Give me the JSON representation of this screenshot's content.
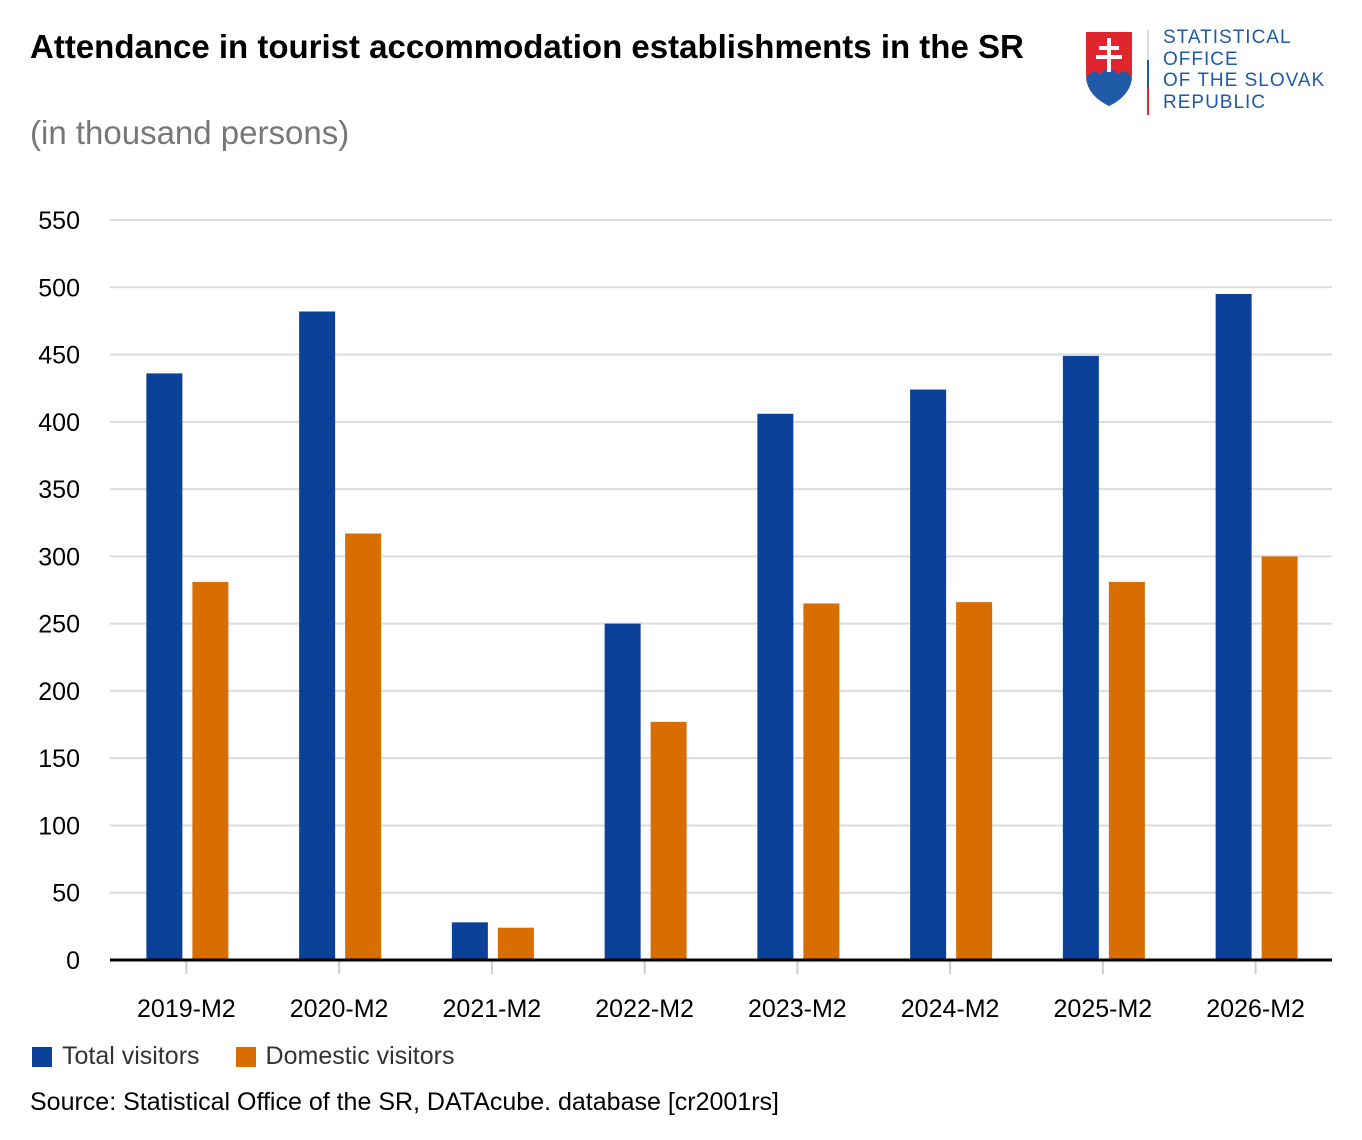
{
  "title": "Attendance in tourist accommodation establishments in the SR",
  "subtitle": "(in thousand persons)",
  "logo": {
    "lines": [
      "STATISTICAL",
      "OFFICE",
      "OF THE SLOVAK",
      "REPUBLIC"
    ]
  },
  "source": "Source: Statistical Office of the SR, DATAcube. database [cr2001rs]",
  "colors": {
    "total": "#0c4199",
    "domestic": "#d96e00"
  },
  "chart_data": {
    "type": "bar",
    "categories": [
      "2019-M2",
      "2020-M2",
      "2021-M2",
      "2022-M2",
      "2023-M2",
      "2024-M2",
      "2025-M2",
      "2026-M2"
    ],
    "series": [
      {
        "name": "Total visitors",
        "values": [
          436,
          482,
          28,
          250,
          406,
          424,
          449,
          495
        ]
      },
      {
        "name": "Domestic visitors",
        "values": [
          281,
          317,
          24,
          177,
          265,
          266,
          281,
          300
        ]
      }
    ],
    "yticks": [
      0,
      50,
      100,
      150,
      200,
      250,
      300,
      350,
      400,
      450,
      500,
      550
    ],
    "ylim": [
      0,
      550
    ],
    "xlabel": "",
    "ylabel": "",
    "grid": true,
    "legend": "bottom-left"
  }
}
